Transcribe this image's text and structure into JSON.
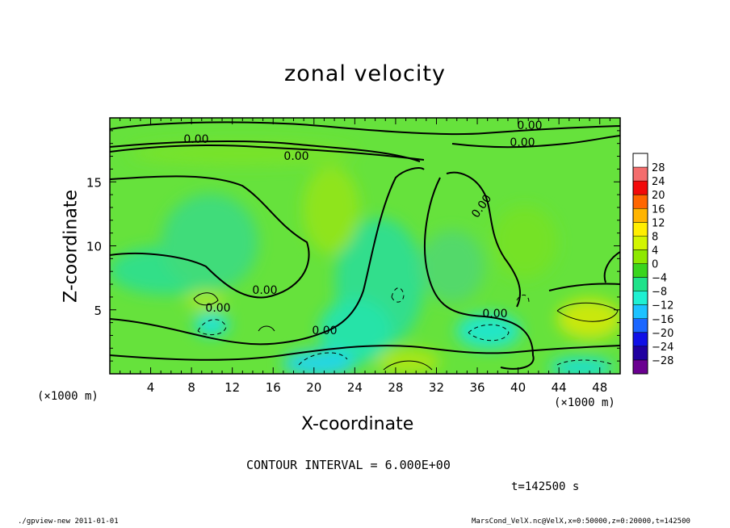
{
  "chart_data": {
    "type": "heatmap",
    "title": "zonal velocity",
    "xlabel": "X-coordinate",
    "ylabel": "Z-coordinate",
    "x_unit_left": "(×1000 m)",
    "x_unit_right": "(×1000 m)",
    "xlim": [
      0,
      50
    ],
    "ylim": [
      0,
      20
    ],
    "x_ticks": [
      4,
      8,
      12,
      16,
      20,
      24,
      28,
      32,
      36,
      40,
      44,
      48
    ],
    "y_ticks": [
      5,
      10,
      15
    ],
    "colorbar": {
      "levels": [
        28,
        24,
        20,
        16,
        12,
        8,
        4,
        0,
        -4,
        -8,
        -12,
        -16,
        -20,
        -24,
        -28
      ],
      "colors": [
        "#ffffff",
        "#f46d6d",
        "#f20a0a",
        "#ff6600",
        "#ffb400",
        "#ffee00",
        "#d2f500",
        "#8ee800",
        "#3ad51e",
        "#1fe28a",
        "#1ff0d2",
        "#1cc2ff",
        "#1a66ff",
        "#1010e6",
        "#2000a0",
        "#6a0090"
      ]
    },
    "contour_labels": [
      "0.00",
      "0.00",
      "0.00",
      "0.00",
      "0.00",
      "0.00",
      "0.00",
      "0.00",
      "0.00"
    ],
    "contour_interval": "CONTOUR INTERVAL = 6.000E+00",
    "time": "t=142500 s",
    "grid": false
  },
  "footer": {
    "left": "./gpview-new  2011-01-01",
    "right": "MarsCond_VelX.nc@VelX,x=0:50000,z=0:20000,t=142500"
  }
}
